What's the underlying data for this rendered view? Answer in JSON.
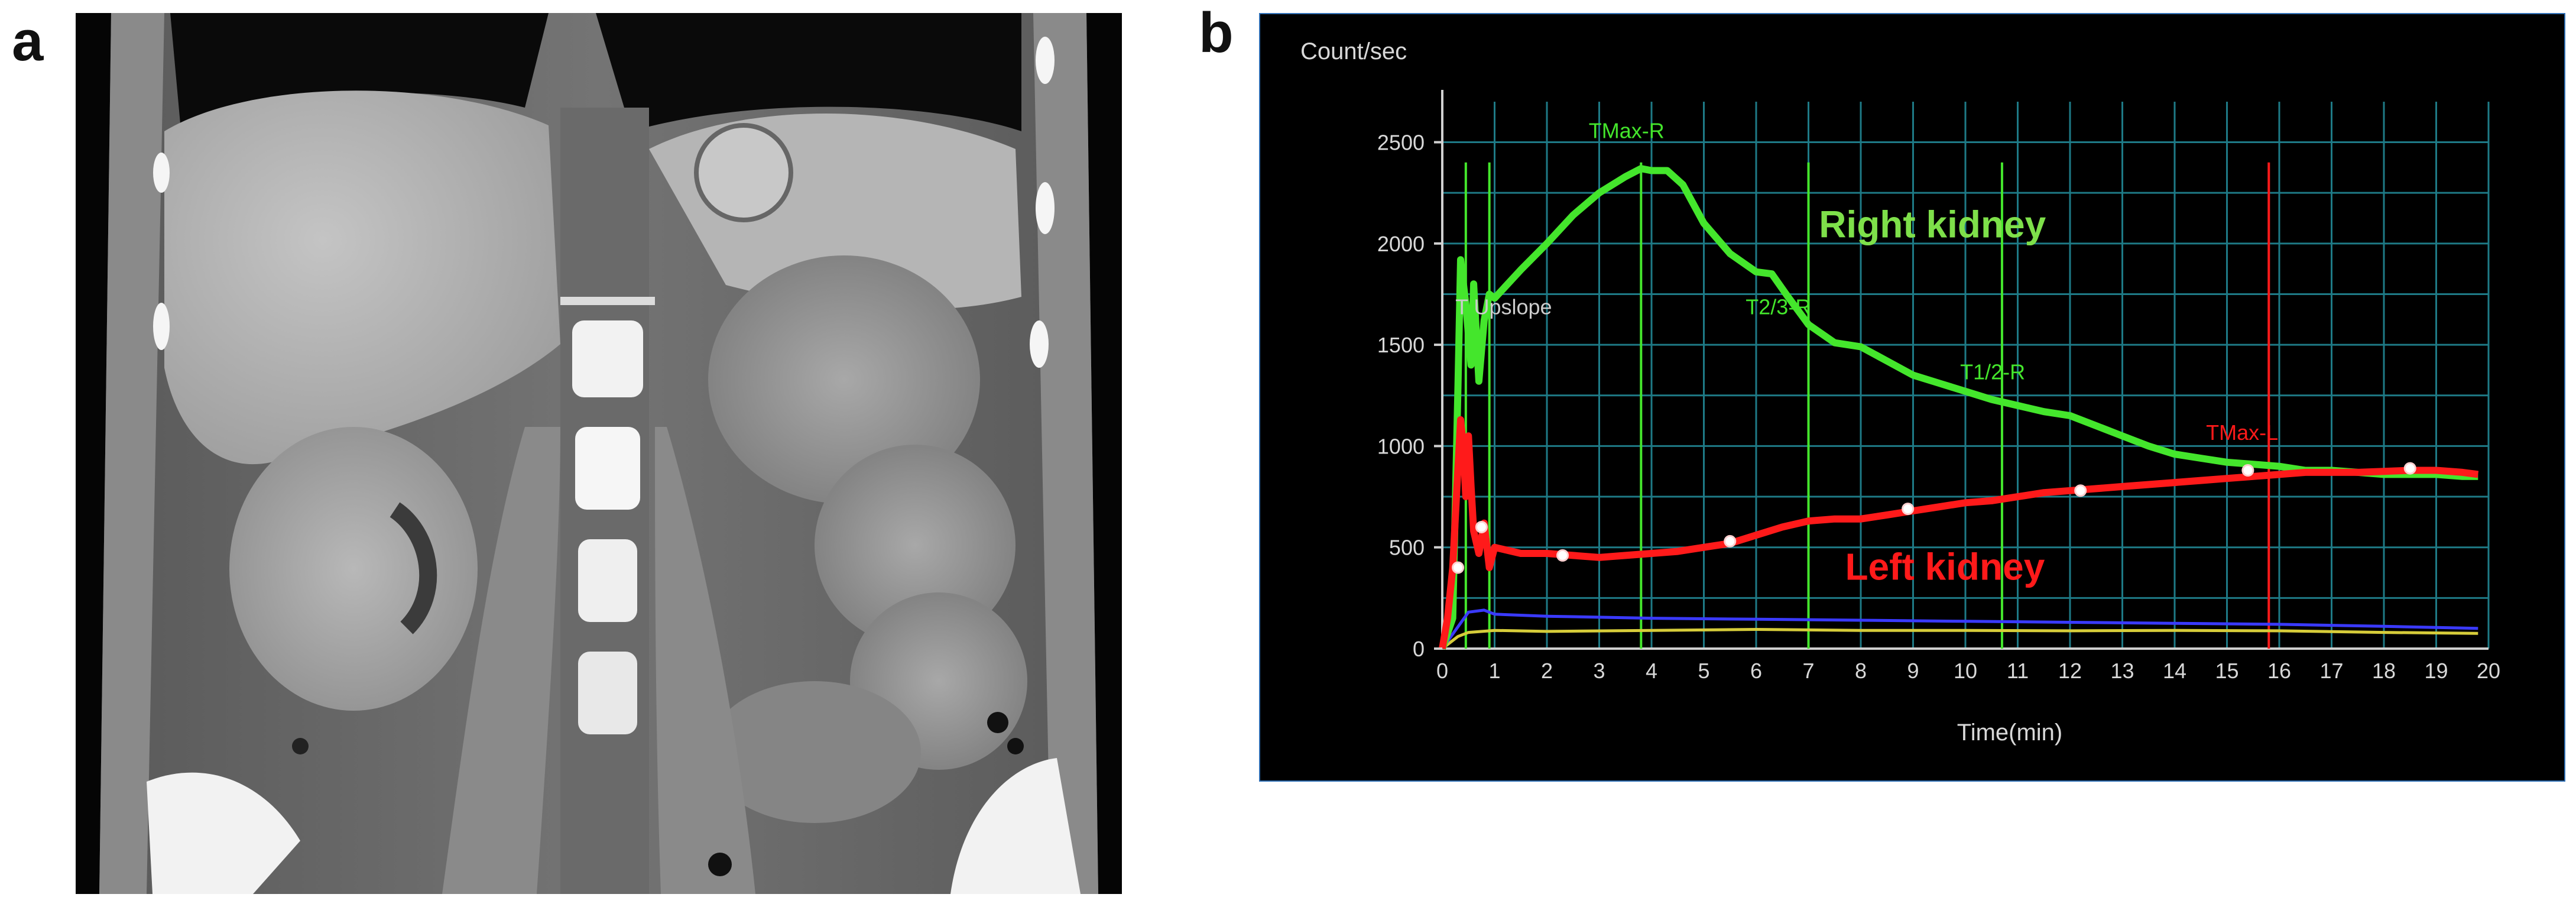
{
  "panels": {
    "a": {
      "letter": "a"
    },
    "b": {
      "letter": "b"
    }
  },
  "chart_data": {
    "type": "line",
    "title": "",
    "xlabel": "Time(min)",
    "ylabel": "Count/sec",
    "xlim": [
      0,
      20
    ],
    "ylim": [
      0,
      2700
    ],
    "xticks": [
      0,
      1,
      2,
      3,
      4,
      5,
      6,
      7,
      8,
      9,
      10,
      11,
      12,
      13,
      14,
      15,
      16,
      17,
      18,
      19,
      20
    ],
    "yticks": [
      0,
      500,
      1000,
      1500,
      2000,
      2500
    ],
    "grid": true,
    "background": "#000000",
    "series": [
      {
        "name": "Right kidney",
        "color": "#44e62c",
        "x": [
          0,
          0.2,
          0.3,
          0.35,
          0.45,
          0.55,
          0.6,
          0.7,
          0.8,
          0.9,
          1.0,
          1.5,
          2.0,
          2.5,
          3.0,
          3.5,
          3.8,
          4.0,
          4.3,
          4.6,
          5.0,
          5.5,
          6.0,
          6.3,
          6.6,
          7.0,
          7.5,
          8.0,
          8.5,
          9.0,
          9.5,
          10.0,
          10.5,
          11.0,
          11.5,
          12.0,
          12.5,
          13.0,
          13.5,
          14.0,
          14.5,
          15.0,
          15.5,
          16.0,
          16.5,
          17.0,
          17.5,
          18.0,
          18.5,
          19.0,
          19.5,
          19.8
        ],
        "values": [
          0,
          150,
          1300,
          1920,
          1700,
          1400,
          1800,
          1320,
          1620,
          1750,
          1730,
          1870,
          2000,
          2140,
          2250,
          2330,
          2370,
          2360,
          2360,
          2290,
          2100,
          1950,
          1860,
          1850,
          1740,
          1600,
          1510,
          1490,
          1420,
          1350,
          1310,
          1270,
          1230,
          1200,
          1170,
          1150,
          1100,
          1050,
          1000,
          960,
          940,
          920,
          910,
          900,
          880,
          880,
          870,
          860,
          860,
          860,
          850,
          850
        ]
      },
      {
        "name": "Left kidney",
        "color": "#ff1a1a",
        "x": [
          0,
          0.1,
          0.2,
          0.28,
          0.35,
          0.4,
          0.45,
          0.5,
          0.55,
          0.6,
          0.7,
          0.8,
          0.9,
          1.0,
          1.5,
          2.0,
          2.5,
          3.0,
          3.5,
          4.0,
          4.5,
          5.0,
          5.5,
          6.0,
          6.5,
          7.0,
          7.5,
          8.0,
          8.5,
          9.0,
          9.5,
          10.0,
          10.5,
          11.0,
          11.5,
          12.0,
          12.5,
          13.0,
          13.5,
          14.0,
          14.5,
          15.0,
          15.5,
          16.0,
          16.5,
          17.0,
          17.5,
          18.0,
          18.5,
          19.0,
          19.5,
          19.8
        ],
        "values": [
          0,
          150,
          400,
          800,
          1130,
          1000,
          750,
          1050,
          800,
          580,
          470,
          620,
          400,
          500,
          470,
          470,
          460,
          450,
          460,
          470,
          480,
          500,
          520,
          560,
          600,
          630,
          640,
          640,
          660,
          680,
          700,
          720,
          730,
          750,
          770,
          780,
          790,
          800,
          810,
          820,
          830,
          840,
          850,
          860,
          870,
          870,
          870,
          875,
          880,
          880,
          870,
          860
        ]
      },
      {
        "name": "",
        "color": "#3a3aff",
        "x": [
          0,
          0.5,
          0.8,
          1,
          2,
          4,
          6,
          8,
          10,
          12,
          14,
          16,
          18,
          19.8
        ],
        "values": [
          0,
          180,
          190,
          170,
          160,
          150,
          145,
          140,
          135,
          130,
          125,
          120,
          110,
          100
        ]
      },
      {
        "name": "",
        "color": "#d6cc3a",
        "x": [
          0,
          0.3,
          0.5,
          1,
          2,
          4,
          6,
          8,
          10,
          12,
          14,
          16,
          18,
          19.8
        ],
        "values": [
          0,
          60,
          80,
          90,
          85,
          90,
          95,
          90,
          90,
          88,
          90,
          88,
          80,
          75
        ]
      }
    ],
    "vlines": [
      {
        "x": 0.45,
        "color": "#44e62c"
      },
      {
        "x": 0.9,
        "color": "#44e62c"
      },
      {
        "x": 3.8,
        "color": "#44e62c"
      },
      {
        "x": 7.0,
        "color": "#44e62c"
      },
      {
        "x": 10.7,
        "color": "#44e62c"
      },
      {
        "x": 15.8,
        "color": "#ff1a1a"
      }
    ],
    "annotations": [
      {
        "text": "TMax-R",
        "x": 2.8,
        "y": 2520,
        "color": "#44e62c",
        "size": 36
      },
      {
        "text": "T Upslope",
        "x": 0.25,
        "y": 1650,
        "color": "#cccccc",
        "size": 36
      },
      {
        "text": "T2/3-R",
        "x": 5.8,
        "y": 1650,
        "color": "#44e62c",
        "size": 36
      },
      {
        "text": "T1/2-R",
        "x": 9.9,
        "y": 1330,
        "color": "#44e62c",
        "size": 36
      },
      {
        "text": "TMax-L",
        "x": 14.6,
        "y": 1030,
        "color": "#ff1a1a",
        "size": 36
      },
      {
        "text": "Right kidney",
        "x": 7.2,
        "y": 2030,
        "color": "#7ee04a",
        "size": 64,
        "bold": true
      },
      {
        "text": "Left kidney",
        "x": 7.7,
        "y": 340,
        "color": "#ff1a1a",
        "size": 64,
        "bold": true
      }
    ],
    "markers": [
      {
        "x": 0.3,
        "y": 400
      },
      {
        "x": 0.75,
        "y": 600
      },
      {
        "x": 2.3,
        "y": 460
      },
      {
        "x": 5.5,
        "y": 530
      },
      {
        "x": 8.9,
        "y": 690
      },
      {
        "x": 12.2,
        "y": 780
      },
      {
        "x": 15.4,
        "y": 880
      },
      {
        "x": 18.5,
        "y": 890
      }
    ]
  }
}
